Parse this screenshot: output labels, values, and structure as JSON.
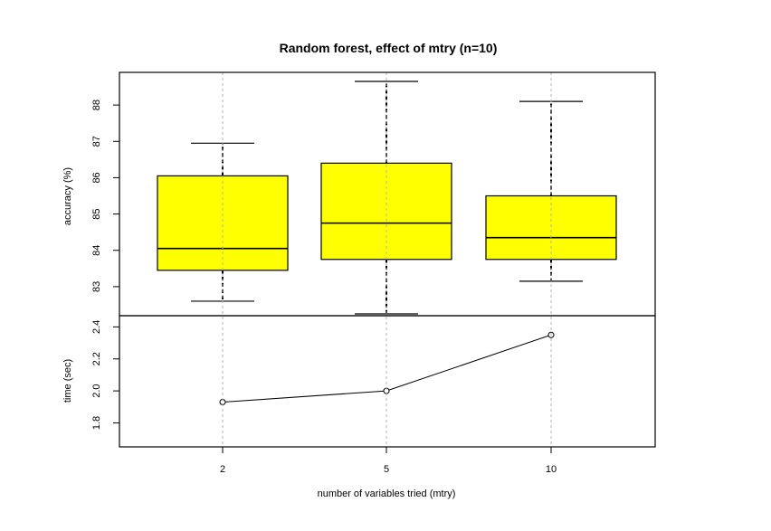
{
  "chart_data": [
    {
      "type": "box",
      "title": "Random forest, effect of mtry (n=10)",
      "xlabel": "number of variables tried (mtry)",
      "ylabel": "accuracy (%)",
      "categories": [
        "2",
        "5",
        "10"
      ],
      "yticks": [
        83,
        84,
        85,
        86,
        87,
        88
      ],
      "ylim": [
        82.2,
        88.9
      ],
      "grid": "vertical dashed at categories",
      "box_color": "#ffff00",
      "boxes": [
        {
          "category": "2",
          "min": 82.6,
          "q1": 83.45,
          "median": 84.05,
          "q3": 86.05,
          "max": 86.95
        },
        {
          "category": "5",
          "min": 82.25,
          "q1": 83.75,
          "median": 84.75,
          "q3": 86.4,
          "max": 88.65
        },
        {
          "category": "10",
          "min": 83.15,
          "q1": 83.75,
          "median": 84.35,
          "q3": 85.5,
          "max": 88.1
        }
      ]
    },
    {
      "type": "line",
      "xlabel": "number of variables tried (mtry)",
      "ylabel": "time (sec)",
      "categories": [
        "2",
        "5",
        "10"
      ],
      "yticks": [
        1.8,
        2.0,
        2.2,
        2.4
      ],
      "ylim": [
        1.65,
        2.47
      ],
      "grid": "vertical dashed at categories",
      "values": [
        1.93,
        2.0,
        2.35
      ]
    }
  ]
}
